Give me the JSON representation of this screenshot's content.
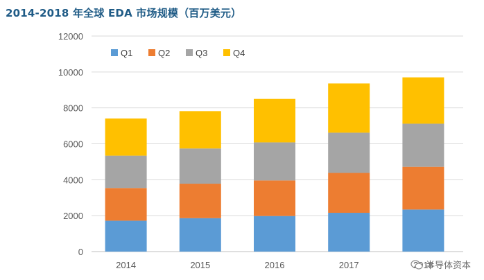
{
  "title": "2014-2018 年全球 EDA 市场规模（百万美元）",
  "watermark": "半导体资本",
  "chart_data": {
    "type": "bar",
    "stacked": true,
    "categories": [
      "2014",
      "2015",
      "2016",
      "2017",
      "2018"
    ],
    "series": [
      {
        "name": "Q1",
        "color": "#5b9bd5",
        "values": [
          1720,
          1860,
          1980,
          2160,
          2340
        ]
      },
      {
        "name": "Q2",
        "color": "#ed7d31",
        "values": [
          1820,
          1920,
          1980,
          2220,
          2380
        ]
      },
      {
        "name": "Q3",
        "color": "#a5a5a5",
        "values": [
          1800,
          1960,
          2120,
          2240,
          2400
        ]
      },
      {
        "name": "Q4",
        "color": "#ffc000",
        "values": [
          2070,
          2080,
          2420,
          2740,
          2580
        ]
      }
    ],
    "ylim": [
      0,
      12000
    ],
    "yticks": [
      "0",
      "2000",
      "4000",
      "6000",
      "8000",
      "10000",
      "12000"
    ],
    "ytick_values": [
      0,
      2000,
      4000,
      6000,
      8000,
      10000,
      12000
    ],
    "grid": true,
    "legend": "top-left",
    "xlabel": "",
    "ylabel": ""
  }
}
